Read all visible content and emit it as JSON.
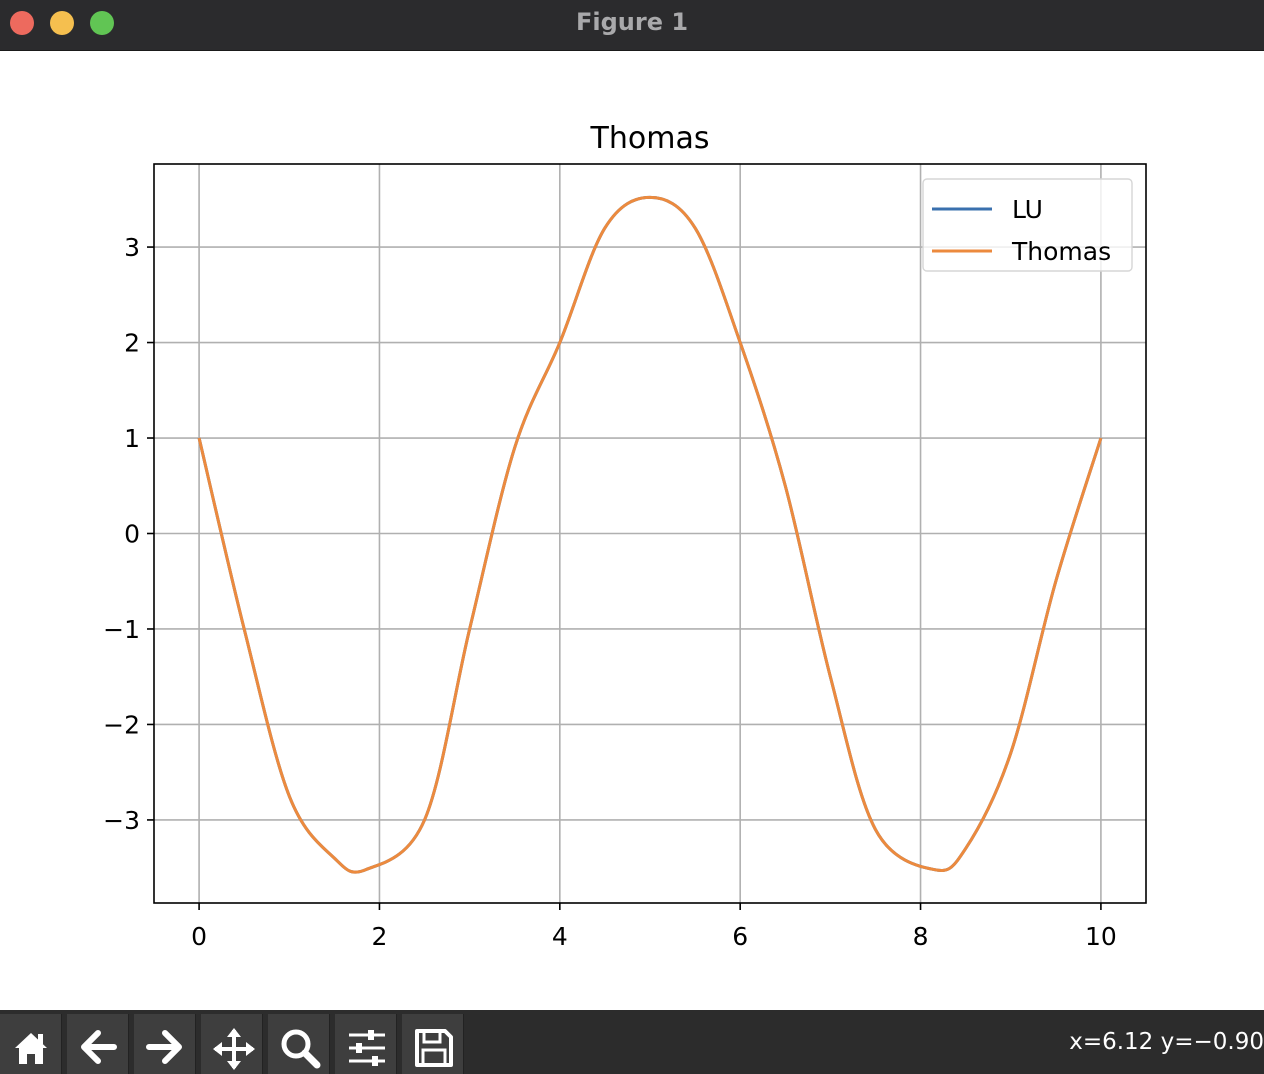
{
  "window": {
    "title": "Figure 1",
    "controls": [
      "close",
      "minimize",
      "zoom"
    ]
  },
  "chart_data": {
    "type": "line",
    "title": "Thomas",
    "xlabel": "",
    "ylabel": "",
    "xlim": [
      -0.5,
      10.5
    ],
    "ylim": [
      -3.87,
      3.87
    ],
    "xticks": [
      0,
      2,
      4,
      6,
      8,
      10
    ],
    "xtick_labels": [
      "0",
      "2",
      "4",
      "6",
      "8",
      "10"
    ],
    "yticks": [
      -3,
      -2,
      -1,
      0,
      1,
      2,
      3
    ],
    "ytick_labels": [
      "−3",
      "−2",
      "−1",
      "0",
      "1",
      "2",
      "3"
    ],
    "grid": true,
    "legend_position": "top-right",
    "series": [
      {
        "name": "LU",
        "color": "#3a70ae",
        "x": [
          0,
          0.5,
          1,
          1.5,
          1.85,
          2.5,
          3,
          3.5,
          4,
          4.5,
          5,
          5.5,
          6,
          6.5,
          7,
          7.5,
          8.15,
          8.5,
          9,
          9.5,
          10
        ],
        "y": [
          1.0,
          -1.0,
          -2.75,
          -3.4,
          -3.52,
          -3.0,
          -1.0,
          0.9,
          2.0,
          3.2,
          3.52,
          3.2,
          2.0,
          0.5,
          -1.5,
          -3.1,
          -3.52,
          -3.3,
          -2.3,
          -0.5,
          1.0
        ]
      },
      {
        "name": "Thomas",
        "color": "#ec8a3e",
        "x": [
          0,
          0.5,
          1,
          1.5,
          1.85,
          2.5,
          3,
          3.5,
          4,
          4.5,
          5,
          5.5,
          6,
          6.5,
          7,
          7.5,
          8.15,
          8.5,
          9,
          9.5,
          10
        ],
        "y": [
          1.0,
          -1.0,
          -2.75,
          -3.4,
          -3.52,
          -3.0,
          -1.0,
          0.9,
          2.0,
          3.2,
          3.52,
          3.2,
          2.0,
          0.5,
          -1.5,
          -3.1,
          -3.52,
          -3.3,
          -2.3,
          -0.5,
          1.0
        ]
      }
    ]
  },
  "toolbar": {
    "tools": [
      {
        "name": "home",
        "icon": "home-icon"
      },
      {
        "name": "back",
        "icon": "arrow-left-icon"
      },
      {
        "name": "forward",
        "icon": "arrow-right-icon"
      },
      {
        "name": "pan",
        "icon": "move-arrows-icon"
      },
      {
        "name": "zoom",
        "icon": "magnifier-icon"
      },
      {
        "name": "configure-subplots",
        "icon": "sliders-icon"
      },
      {
        "name": "save",
        "icon": "floppy-disk-icon"
      }
    ],
    "coords": "x=6.12 y=−0.90"
  }
}
